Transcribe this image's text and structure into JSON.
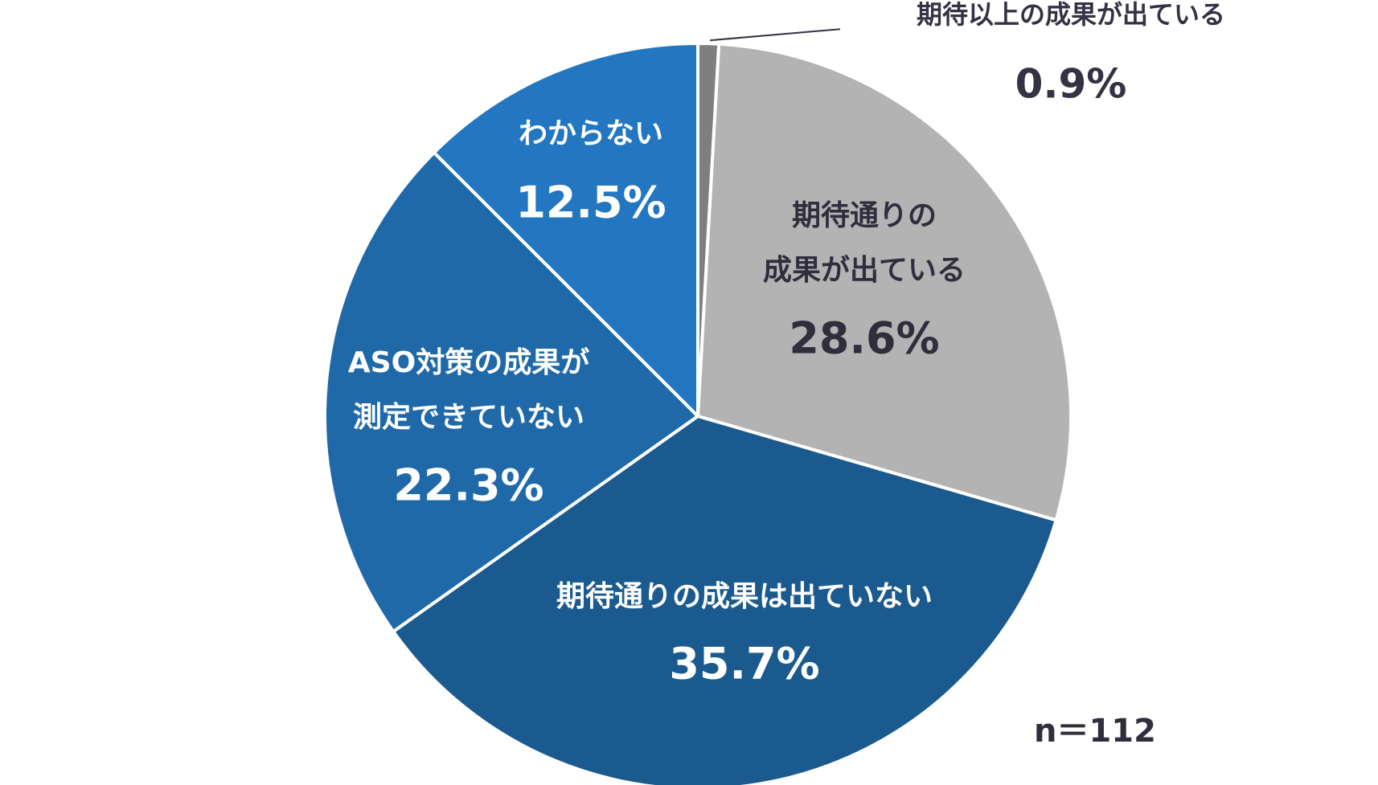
{
  "chart_data": {
    "type": "pie",
    "title": "",
    "start": "12 o'clock",
    "direction": "clockwise",
    "slices": [
      {
        "name": "期待以上の成果が出ている",
        "lines": [
          "期待以上の成果が出ている"
        ],
        "value": 0.9,
        "percent_label": "0.9%",
        "color": "#7f7f7f",
        "label_color": "#333344",
        "label_position": "outside"
      },
      {
        "name": "期待通りの成果が出ている",
        "lines": [
          "期待通りの",
          "成果が出ている"
        ],
        "value": 28.6,
        "percent_label": "28.6%",
        "color": "#b3b3b3",
        "label_color": "#2e2e3d",
        "label_position": "inside"
      },
      {
        "name": "期待通りの成果は出ていない",
        "lines": [
          "期待通りの成果は出ていない"
        ],
        "value": 35.7,
        "percent_label": "35.7%",
        "color": "#1b5a8e",
        "label_color": "#ffffff",
        "label_position": "inside"
      },
      {
        "name": "ASO対策の成果が測定できていない",
        "lines": [
          "ASO対策の成果が",
          "測定できていない"
        ],
        "value": 22.3,
        "percent_label": "22.3%",
        "color": "#1f69a9",
        "label_color": "#ffffff",
        "label_position": "inside"
      },
      {
        "name": "わからない",
        "lines": [
          "わからない"
        ],
        "value": 12.5,
        "percent_label": "12.5%",
        "color": "#2377c0",
        "label_color": "#ffffff",
        "label_position": "inside"
      }
    ],
    "note": "n＝112"
  }
}
